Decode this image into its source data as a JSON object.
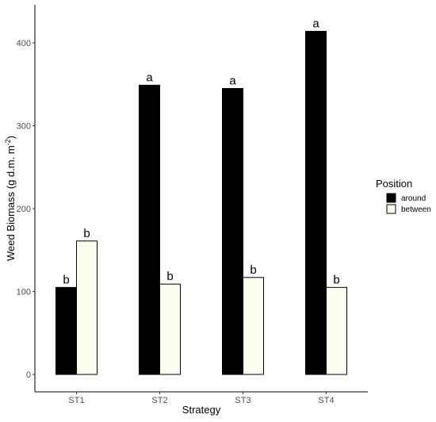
{
  "chart_data": {
    "type": "bar",
    "categories": [
      "ST1",
      "ST2",
      "ST3",
      "ST4"
    ],
    "series": [
      {
        "name": "around",
        "color": "#000000",
        "values": [
          105,
          349,
          345,
          414
        ],
        "labels": [
          "b",
          "a",
          "a",
          "a"
        ]
      },
      {
        "name": "between",
        "color": "#fdfdf0",
        "values": [
          161,
          109,
          117,
          105
        ],
        "labels": [
          "b",
          "b",
          "b",
          "b"
        ]
      }
    ],
    "xlabel": "Strategy",
    "ylabel_main": "Weed Biomass (g d.m. m",
    "ylabel_sup": "-2",
    "ylabel_end": ")",
    "yticks": [
      0,
      100,
      200,
      300,
      400
    ],
    "ylim": [
      -21,
      446
    ],
    "grid": false,
    "legend": {
      "title": "Position",
      "placement": "right"
    }
  }
}
